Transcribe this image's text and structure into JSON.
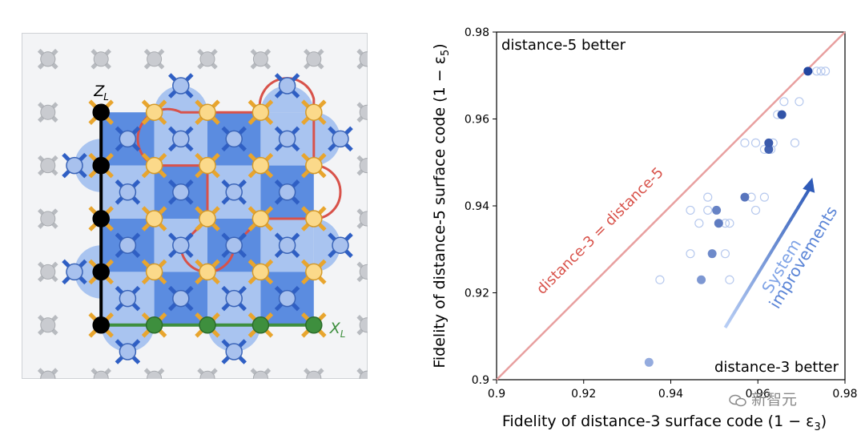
{
  "figure": {
    "left_panel": {
      "z_label": "Z",
      "z_sub": "L",
      "x_label": "X",
      "x_sub": "L",
      "colors": {
        "panel_bg": "#f3f4f6",
        "dark_plaquette": "#5b8ce0",
        "light_plaquette": "#a9c4f0",
        "measure_qubit": "#a8c1ee",
        "measure_arm": "#2f5fc4",
        "data_qubit": "#fbd98a",
        "data_arm": "#e8a52e",
        "inactive": "#c9cbd0",
        "logical_z": "#000000",
        "logical_x": "#3e8f3e",
        "boundary": "#d8524a"
      }
    },
    "chart_data": {
      "type": "scatter",
      "xlabel": "Fidelity of distance-3 surface code (1 − ε",
      "xlabel_sub": "3",
      "xlabel_end": ")",
      "ylabel": "Fidelity of distance-5 surface code (1 − ε",
      "ylabel_sub": "5",
      "ylabel_end": ")",
      "xlim": [
        0.9,
        0.98
      ],
      "ylim": [
        0.9,
        0.98
      ],
      "xticks": [
        "0.9",
        "0.92",
        "0.94",
        "0.96",
        "0.98"
      ],
      "yticks": [
        "0.9",
        "0.92",
        "0.94",
        "0.96",
        "0.98"
      ],
      "annotation_top_left": "distance-5 better",
      "annotation_bottom_right": "distance-3 better",
      "diagonal_label": "distance-3 = distance-5",
      "arrow_label_line1": "System",
      "arrow_label_line2": "improvements",
      "diagonal_color": "#e8a0a0",
      "series": [
        {
          "style": "hollow",
          "points": [
            [
              0.9735,
              0.971
            ],
            [
              0.9745,
              0.971
            ],
            [
              0.9755,
              0.971
            ],
            [
              0.966,
              0.964
            ],
            [
              0.9645,
              0.961
            ],
            [
              0.9695,
              0.964
            ],
            [
              0.957,
              0.9545
            ],
            [
              0.9595,
              0.9545
            ],
            [
              0.9635,
              0.9545
            ],
            [
              0.9685,
              0.9545
            ],
            [
              0.9615,
              0.953
            ],
            [
              0.963,
              0.953
            ],
            [
              0.9485,
              0.942
            ],
            [
              0.9585,
              0.942
            ],
            [
              0.9615,
              0.942
            ],
            [
              0.9445,
              0.939
            ],
            [
              0.9485,
              0.939
            ],
            [
              0.9595,
              0.939
            ],
            [
              0.9465,
              0.936
            ],
            [
              0.9525,
              0.936
            ],
            [
              0.9535,
              0.936
            ],
            [
              0.9445,
              0.929
            ],
            [
              0.9525,
              0.929
            ],
            [
              0.9375,
              0.923
            ],
            [
              0.9535,
              0.923
            ]
          ]
        },
        {
          "style": "filled",
          "points": [
            [
              0.935,
              0.904,
              0.25
            ],
            [
              0.947,
              0.923,
              0.4
            ],
            [
              0.9495,
              0.929,
              0.5
            ],
            [
              0.951,
              0.936,
              0.6
            ],
            [
              0.9505,
              0.939,
              0.55
            ],
            [
              0.957,
              0.942,
              0.65
            ],
            [
              0.9625,
              0.953,
              0.8
            ],
            [
              0.9625,
              0.9545,
              0.85
            ],
            [
              0.9655,
              0.961,
              0.9
            ],
            [
              0.9715,
              0.971,
              1.0
            ]
          ]
        }
      ]
    },
    "watermark": "新智元"
  }
}
